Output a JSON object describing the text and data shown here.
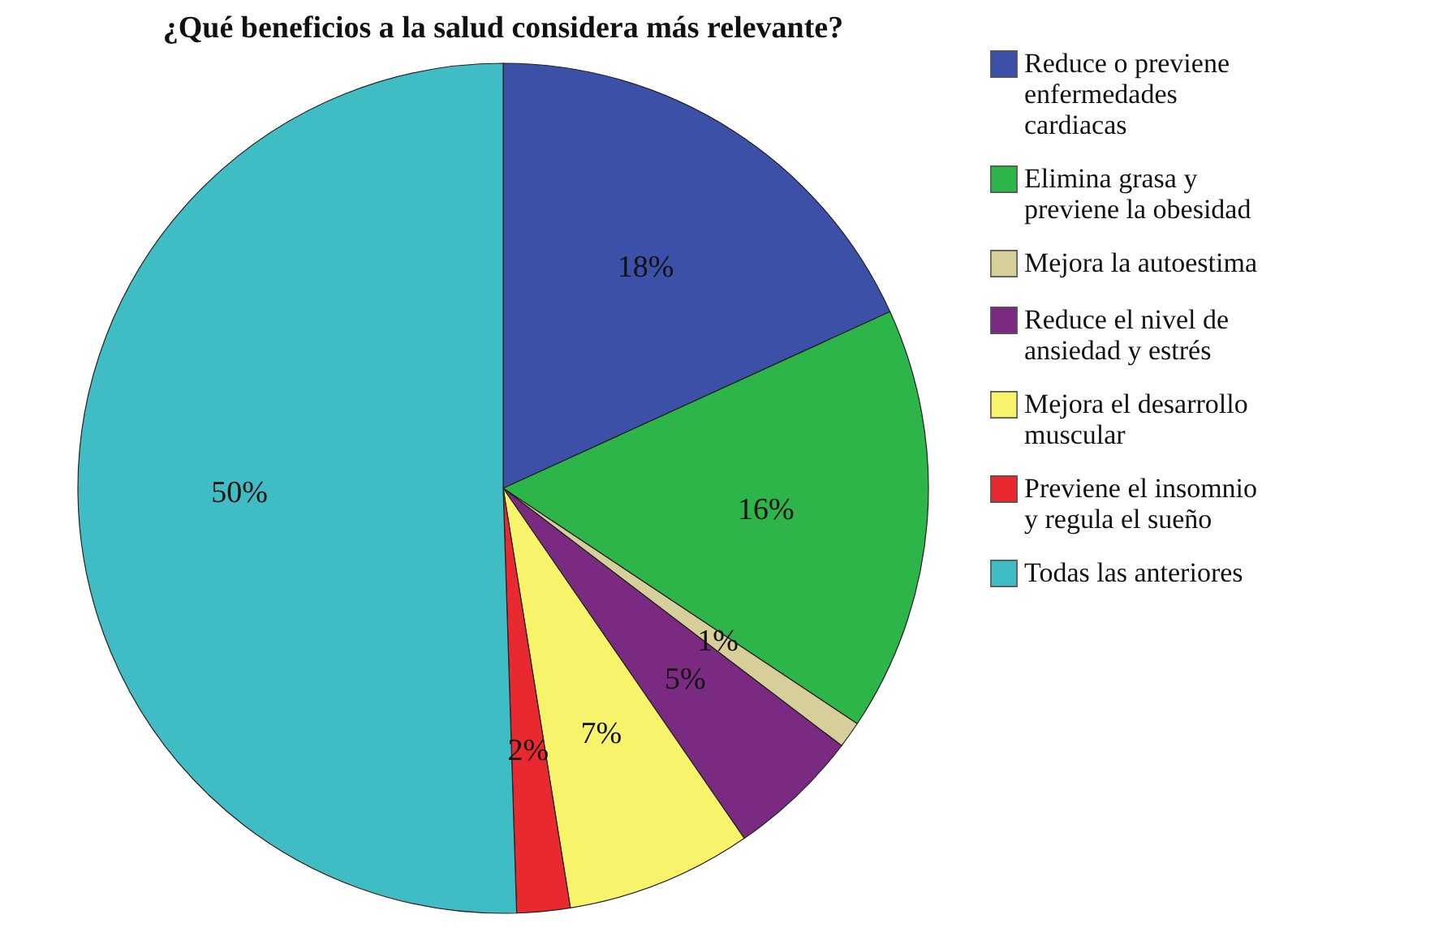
{
  "chart_data": {
    "type": "pie",
    "title": "¿Qué beneficios a la salud considera más relevante?",
    "categories": [
      "Reduce o previene enfermedades cardiacas",
      "Elimina grasa y previene la obesidad",
      "Mejora la autoestima",
      "Reduce el nivel de ansiedad y estrés",
      "Mejora el desarrollo muscular",
      "Previene el insomnio y regula el sueño",
      "Todas las anteriores"
    ],
    "values": [
      18,
      16,
      1,
      5,
      7,
      2,
      50
    ],
    "value_labels": [
      "18%",
      "16%",
      "1%",
      "5%",
      "7%",
      "2%",
      "50%"
    ],
    "colors": [
      "#3c50a8",
      "#2db54a",
      "#d6cf9a",
      "#7a2a80",
      "#f7f36b",
      "#e8292f",
      "#40bdc4"
    ],
    "legend": "right"
  }
}
